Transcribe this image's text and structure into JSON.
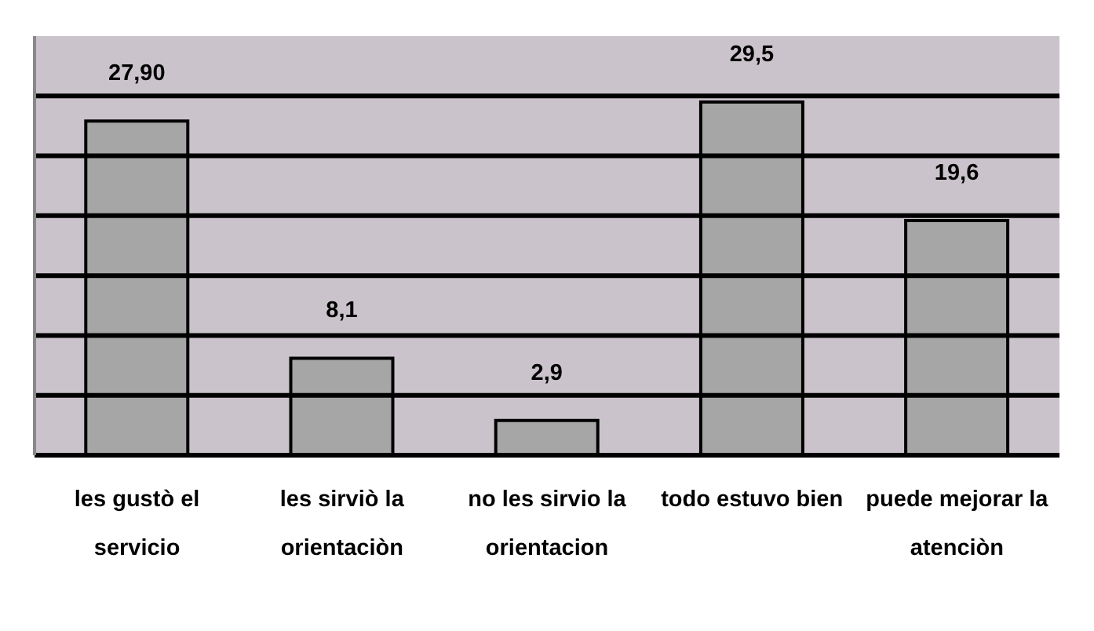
{
  "chart_data": {
    "type": "bar",
    "categories": [
      "les gustò el servicio",
      "les sirviò la orientaciòn",
      "no les sirvio la orientacion",
      "todo estuvo bien",
      "puede mejorar la atenciòn"
    ],
    "values": [
      27.9,
      8.1,
      2.9,
      29.5,
      19.6
    ],
    "value_labels": [
      "27,90",
      "8,1",
      "2,9",
      "29,5",
      "19,6"
    ],
    "color": "#a6a6a6",
    "ylim": [
      0,
      35
    ],
    "yticks": [
      {
        "value": 5,
        "label": null
      },
      {
        "value": 10,
        "label": null
      },
      {
        "value": 15,
        "label": null
      },
      {
        "value": 20,
        "label": null
      },
      {
        "value": 25,
        "label": null
      },
      {
        "value": 30,
        "label": null
      }
    ],
    "tick_labels": "x",
    "grid": "y"
  }
}
